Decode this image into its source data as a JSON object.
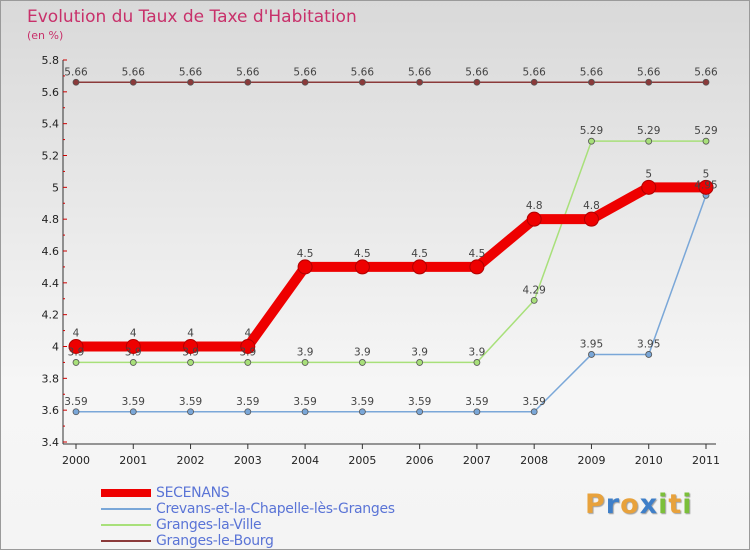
{
  "title": "Evolution du Taux de Taxe d'Habitation",
  "unit": "(en %)",
  "brand": {
    "text": "Proxiti",
    "letters": [
      {
        "ch": "P",
        "color": "#e8a23c"
      },
      {
        "ch": "r",
        "color": "#3f7fc8"
      },
      {
        "ch": "o",
        "color": "#e8a23c"
      },
      {
        "ch": "x",
        "color": "#3f7fc8"
      },
      {
        "ch": "i",
        "color": "#7bbf3a"
      },
      {
        "ch": "t",
        "color": "#e8a23c"
      },
      {
        "ch": "i",
        "color": "#7bbf3a"
      }
    ]
  },
  "chart_data": {
    "type": "line",
    "x": [
      "2000",
      "2001",
      "2002",
      "2003",
      "2004",
      "2005",
      "2006",
      "2007",
      "2008",
      "2009",
      "2010",
      "2011"
    ],
    "ylim": [
      3.4,
      5.8
    ],
    "yticks": [
      "3.4",
      "3.6",
      "3.8",
      "4",
      "4.2",
      "4.4",
      "4.6",
      "4.8",
      "5",
      "5.2",
      "5.4",
      "5.6",
      "5.8"
    ],
    "grid": false,
    "legend_position": "bottom-left",
    "series": [
      {
        "name": "SECENANS",
        "color": "#ee0000",
        "width": 10,
        "marker": 7,
        "values": [
          4,
          4,
          4,
          4,
          4.5,
          4.5,
          4.5,
          4.5,
          4.8,
          4.8,
          5,
          5
        ],
        "labels": [
          "4",
          "4",
          "4",
          "4",
          "4.5",
          "4.5",
          "4.5",
          "4.5",
          "4.8",
          "4.8",
          "5",
          "5"
        ]
      },
      {
        "name": "Crevans-et-la-Chapelle-lès-Granges",
        "color": "#7aa7d8",
        "width": 1.5,
        "marker": 3,
        "values": [
          3.59,
          3.59,
          3.59,
          3.59,
          3.59,
          3.59,
          3.59,
          3.59,
          3.59,
          3.95,
          3.95,
          4.95
        ],
        "labels": [
          "3.59",
          "3.59",
          "3.59",
          "3.59",
          "3.59",
          "3.59",
          "3.59",
          "3.59",
          "3.59",
          "3.95",
          "3.95",
          "4.95"
        ]
      },
      {
        "name": "Granges-la-Ville",
        "color": "#a8e07a",
        "width": 1.5,
        "marker": 3,
        "values": [
          3.9,
          3.9,
          3.9,
          3.9,
          3.9,
          3.9,
          3.9,
          3.9,
          4.29,
          5.29,
          5.29,
          5.29
        ],
        "labels": [
          "3.9",
          "3.9",
          "3.9",
          "3.9",
          "3.9",
          "3.9",
          "3.9",
          "3.9",
          "4.29",
          "5.29",
          "5.29",
          "5.29"
        ]
      },
      {
        "name": "Granges-le-Bourg",
        "color": "#8b3a3a",
        "width": 1.5,
        "marker": 3,
        "values": [
          5.66,
          5.66,
          5.66,
          5.66,
          5.66,
          5.66,
          5.66,
          5.66,
          5.66,
          5.66,
          5.66,
          5.66
        ],
        "labels": [
          "5.66",
          "5.66",
          "5.66",
          "5.66",
          "5.66",
          "5.66",
          "5.66",
          "5.66",
          "5.66",
          "5.66",
          "5.66",
          "5.66"
        ]
      }
    ]
  }
}
